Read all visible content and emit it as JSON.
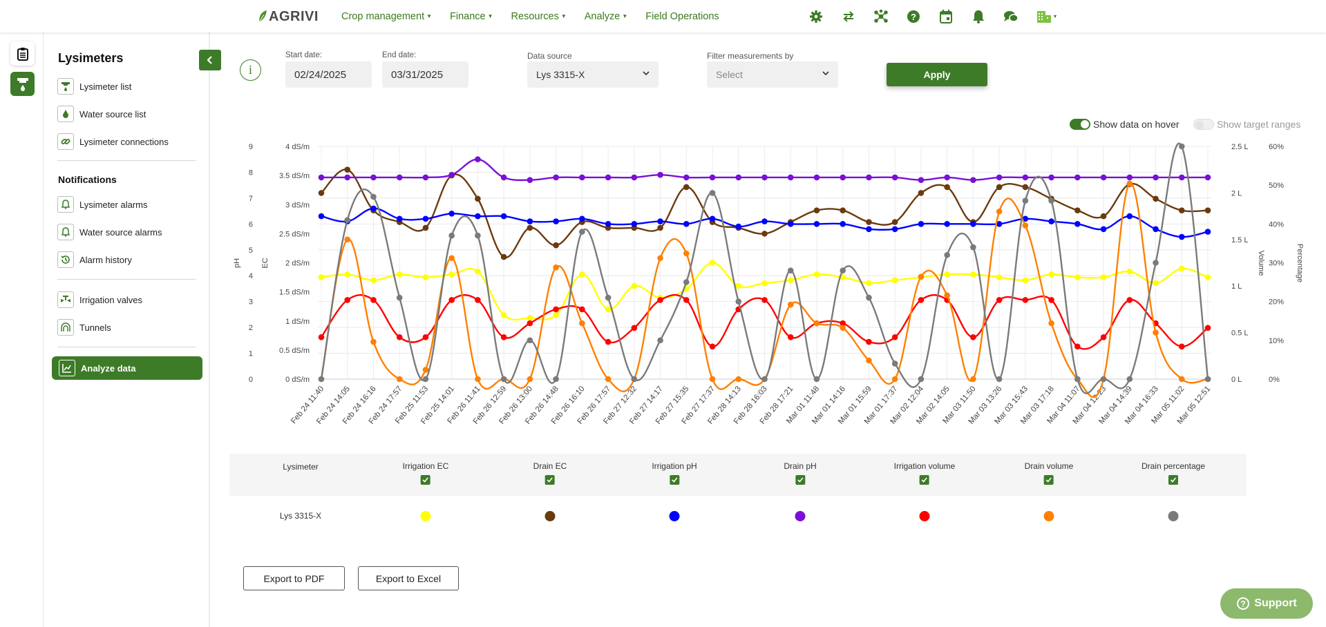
{
  "brand": {
    "name": "AGRIVI"
  },
  "nav": [
    {
      "label": "Crop management",
      "dropdown": true
    },
    {
      "label": "Finance",
      "dropdown": true
    },
    {
      "label": "Resources",
      "dropdown": true
    },
    {
      "label": "Analyze",
      "dropdown": true
    },
    {
      "label": "Field Operations",
      "dropdown": false
    }
  ],
  "top_icons": [
    "gear-icon",
    "swap-icon",
    "network-icon",
    "help-icon",
    "calendar-icon",
    "bell-icon",
    "chat-icon",
    "building-icon"
  ],
  "sidebar": {
    "title": "Lysimeters",
    "group1": [
      {
        "label": "Lysimeter list",
        "icon": "lysimeter-icon"
      },
      {
        "label": "Water source list",
        "icon": "water-drop-icon"
      },
      {
        "label": "Lysimeter connections",
        "icon": "link-icon"
      }
    ],
    "notifications_title": "Notifications",
    "group2": [
      {
        "label": "Lysimeter alarms",
        "icon": "alarm-bell-icon"
      },
      {
        "label": "Water source alarms",
        "icon": "alarm-bell-icon"
      },
      {
        "label": "Alarm history",
        "icon": "history-icon"
      }
    ],
    "group3": [
      {
        "label": "Irrigation valves",
        "icon": "valve-icon"
      },
      {
        "label": "Tunnels",
        "icon": "tunnel-icon"
      }
    ],
    "active": {
      "label": "Analyze data",
      "icon": "chart-icon"
    }
  },
  "filters": {
    "start_label": "Start date:",
    "start_value": "02/24/2025",
    "end_label": "End date:",
    "end_value": "03/31/2025",
    "source_label": "Data source",
    "source_value": "Lys 3315-X",
    "filter_label": "Filter measurements by",
    "filter_placeholder": "Select",
    "apply_label": "Apply"
  },
  "toggles": {
    "hover_label": "Show data on hover",
    "hover_on": true,
    "target_label": "Show target ranges",
    "target_on": false
  },
  "chart_data": {
    "type": "line",
    "axes": {
      "ph": {
        "label": "pH",
        "ticks": [
          "0",
          "1",
          "2",
          "3",
          "4",
          "5",
          "6",
          "7",
          "8",
          "9"
        ],
        "range": [
          0,
          9
        ]
      },
      "ec": {
        "label": "EC",
        "ticks": [
          "0 dS/m",
          "0.5 dS/m",
          "1 dS/m",
          "1.5 dS/m",
          "2 dS/m",
          "2.5 dS/m",
          "3 dS/m",
          "3.5 dS/m",
          "4 dS/m"
        ],
        "range": [
          0,
          4
        ]
      },
      "volume": {
        "label": "Volume",
        "ticks": [
          "0 L",
          "0.5 L",
          "1 L",
          "1.5 L",
          "2 L",
          "2.5 L"
        ],
        "range": [
          0,
          2.5
        ]
      },
      "percentage": {
        "label": "Percentage",
        "ticks": [
          "0%",
          "10%",
          "20%",
          "30%",
          "40%",
          "50%",
          "60%"
        ],
        "range": [
          0,
          60
        ]
      }
    },
    "x_labels": [
      "Feb 24 11:40",
      "Feb 24 14:05",
      "Feb 24 16:16",
      "Feb 24 17:57",
      "Feb 25 11:53",
      "Feb 25 14:01",
      "Feb 26 11:41",
      "Feb 26 12:59",
      "Feb 26 13:00",
      "Feb 26 14:48",
      "Feb 26 16:10",
      "Feb 26 17:57",
      "Feb 27 12:32",
      "Feb 27 14:17",
      "Feb 27 15:35",
      "Feb 27 17:37",
      "Feb 28 14:13",
      "Feb 28 16:03",
      "Feb 28 17:21",
      "Mar 01 11:48",
      "Mar 01 14:16",
      "Mar 01 15:59",
      "Mar 01 17:37",
      "Mar 02 12:04",
      "Mar 02 14:05",
      "Mar 03 11:50",
      "Mar 03 13:26",
      "Mar 03 15:43",
      "Mar 03 17:18",
      "Mar 04 11:07",
      "Mar 04 12:23",
      "Mar 04 14:39",
      "Mar 04 16:33",
      "Mar 05 11:02",
      "Mar 05 12:51"
    ],
    "series": [
      {
        "name": "Irrigation EC",
        "color": "#ffff00",
        "axis": "ec",
        "values": [
          1.75,
          1.8,
          1.7,
          1.8,
          1.75,
          1.8,
          1.85,
          1.1,
          1.05,
          1.1,
          1.8,
          1.2,
          1.6,
          1.4,
          1.55,
          2.0,
          1.6,
          1.65,
          1.7,
          1.8,
          1.75,
          1.65,
          1.7,
          1.75,
          1.8,
          1.8,
          1.75,
          1.7,
          1.8,
          1.75,
          1.75,
          1.85,
          1.65,
          1.9,
          1.75
        ]
      },
      {
        "name": "Drain EC",
        "color": "#6b3a0e",
        "axis": "ec",
        "values": [
          3.2,
          3.6,
          2.9,
          2.7,
          2.6,
          3.5,
          3.1,
          2.1,
          2.6,
          2.3,
          2.7,
          2.6,
          2.6,
          2.6,
          3.3,
          2.7,
          2.6,
          2.5,
          2.7,
          2.9,
          2.9,
          2.7,
          2.7,
          3.2,
          3.3,
          2.7,
          3.3,
          3.3,
          3.1,
          2.9,
          2.8,
          3.35,
          3.1,
          2.9,
          2.9
        ]
      },
      {
        "name": "Irrigation pH",
        "color": "#0000ff",
        "axis": "ph",
        "values": [
          6.3,
          6.1,
          6.6,
          6.2,
          6.2,
          6.4,
          6.3,
          6.3,
          6.1,
          6.1,
          6.2,
          6.0,
          6.0,
          6.1,
          6.0,
          6.2,
          5.9,
          6.1,
          6.0,
          6.0,
          6.0,
          5.8,
          5.8,
          6.0,
          6.0,
          6.0,
          6.0,
          6.2,
          6.1,
          6.0,
          5.8,
          6.3,
          5.8,
          5.5,
          5.7
        ]
      },
      {
        "name": "Drain pH",
        "color": "#7a0fd8",
        "axis": "ph",
        "values": [
          7.8,
          7.8,
          7.8,
          7.8,
          7.8,
          7.9,
          8.5,
          7.8,
          7.7,
          7.8,
          7.8,
          7.8,
          7.8,
          7.9,
          7.8,
          7.8,
          7.8,
          7.8,
          7.8,
          7.8,
          7.8,
          7.8,
          7.8,
          7.7,
          7.8,
          7.7,
          7.8,
          7.8,
          7.8,
          7.8,
          7.8,
          7.8,
          7.8,
          7.8,
          7.8
        ]
      },
      {
        "name": "Irrigation volume",
        "color": "#ff0000",
        "axis": "volume",
        "values": [
          0.45,
          0.85,
          0.85,
          0.45,
          0.45,
          0.85,
          0.85,
          0.45,
          0.6,
          0.75,
          0.75,
          0.4,
          0.55,
          0.85,
          0.85,
          0.35,
          0.75,
          0.85,
          0.45,
          0.6,
          0.6,
          0.4,
          0.45,
          0.85,
          0.85,
          0.45,
          0.85,
          0.85,
          0.85,
          0.35,
          0.45,
          0.85,
          0.6,
          0.35,
          0.55
        ]
      },
      {
        "name": "Drain volume",
        "color": "#ff8000",
        "axis": "volume",
        "values": [
          0.0,
          1.5,
          0.4,
          0.0,
          0.1,
          1.3,
          0.0,
          0.0,
          0.0,
          1.2,
          0.6,
          0.0,
          0.0,
          1.3,
          1.35,
          0.0,
          0.0,
          0.0,
          0.8,
          0.6,
          0.55,
          0.2,
          0.0,
          1.1,
          0.9,
          0.0,
          1.8,
          1.65,
          0.6,
          0.0,
          0.0,
          2.1,
          0.5,
          0.0,
          0.0
        ]
      },
      {
        "name": "Drain percentage",
        "color": "#7a7a7a",
        "axis": "percentage",
        "values": [
          0,
          41,
          47,
          21,
          0,
          37,
          37,
          0,
          10,
          0,
          38,
          21,
          0,
          10,
          25,
          48,
          20,
          0,
          28,
          0,
          28,
          21,
          4,
          0,
          32,
          34,
          0,
          46,
          46,
          0,
          0,
          0,
          30,
          60,
          0
        ]
      }
    ]
  },
  "legend_table": {
    "header_first": "Lysimeter",
    "columns": [
      "Irrigation EC",
      "Drain EC",
      "Irrigation pH",
      "Drain pH",
      "Irrigation volume",
      "Drain volume",
      "Drain percentage"
    ],
    "row_label": "Lys 3315-X",
    "colors": [
      "#ffff00",
      "#6b3a0e",
      "#0000ff",
      "#7a0fd8",
      "#ff0000",
      "#ff8000",
      "#7a7a7a"
    ]
  },
  "actions": {
    "pdf": "Export to PDF",
    "excel": "Export to Excel",
    "support": "Support"
  }
}
